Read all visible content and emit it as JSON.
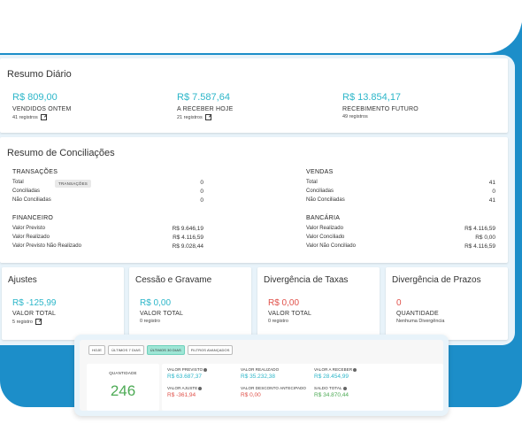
{
  "colors": {
    "accent_teal": "#2cb6c9",
    "negative_red": "#e0514a",
    "positive_green": "#4caa54",
    "background_blue": "#1c8ec9"
  },
  "resumo_diario": {
    "title": "Resumo Diário",
    "columns": [
      {
        "value": "R$ 809,00",
        "label": "VENDIDOS ONTEM",
        "sub": "41 registros"
      },
      {
        "value": "R$ 7.587,64",
        "label": "A RECEBER HOJE",
        "sub": "21 registros"
      },
      {
        "value": "R$ 13.854,17",
        "label": "RECEBIMENTO FUTURO",
        "sub": "49 registros"
      }
    ]
  },
  "resumo_conciliacoes": {
    "title": "Resumo de Conciliações",
    "tooltip": "TRANSAÇÕES",
    "transacoes": {
      "title": "TRANSAÇÕES",
      "rows": [
        [
          "Total",
          "0"
        ],
        [
          "Conciliadas",
          "0"
        ],
        [
          "Não Conciliadas",
          "0"
        ]
      ]
    },
    "vendas": {
      "title": "VENDAS",
      "rows": [
        [
          "Total",
          "41"
        ],
        [
          "Conciliadas",
          "0"
        ],
        [
          "Não Conciliadas",
          "41"
        ]
      ]
    },
    "financeiro": {
      "title": "FINANCEIRO",
      "rows": [
        [
          "Valor Previsto",
          "R$ 9.646,19"
        ],
        [
          "Valor Realizado",
          "R$ 4.116,59"
        ],
        [
          "Valor Previsto Não Realizado",
          "R$ 9.028,44"
        ]
      ]
    },
    "bancaria": {
      "title": "BANCÁRIA",
      "rows": [
        [
          "Valor Realizado",
          "R$ 4.116,59"
        ],
        [
          "Valor Conciliado",
          "R$ 0,00"
        ],
        [
          "Valor Não Conciliado",
          "R$ 4.116,59"
        ]
      ]
    }
  },
  "cards": [
    {
      "title": "Ajustes",
      "value": "R$ -125,99",
      "label": "VALOR TOTAL",
      "sub": "5 registro"
    },
    {
      "title": "Cessão e Gravame",
      "value": "R$ 0,00",
      "label": "VALOR TOTAL",
      "sub": "0 registro"
    },
    {
      "title": "Divergência de Taxas",
      "value": "R$ 0,00",
      "label": "VALOR TOTAL",
      "sub": "0 registro"
    },
    {
      "title": "Divergência de Prazos",
      "value": "0",
      "label": "QUANTIDADE",
      "sub": "Nenhuma Divergência"
    }
  ],
  "popup": {
    "chips": [
      "HOJE",
      "ÚLTIMOS 7 DIAS",
      "ÚLTIMOS 30 DIAS",
      "FILTROS AVANÇADOS"
    ],
    "active_chip": "ÚLTIMOS 30 DIAS",
    "quantidade_label": "QUANTIDADE",
    "quantidade_value": "246",
    "values": [
      {
        "label": "VALOR PREVISTO",
        "value": "R$ 63.687,37"
      },
      {
        "label": "VALOR REALIZADO",
        "value": "R$ 35.232,38"
      },
      {
        "label": "VALOR A RECEBER",
        "value": "R$ 28.454,99"
      },
      {
        "label": "VALOR AJUSTE",
        "value": "R$ -361,94"
      },
      {
        "label": "VALOR DESCONTO ANTECIPADO",
        "value": "R$ 0,00"
      },
      {
        "label": "SALDO TOTAL",
        "value": "R$ 34.870,44"
      }
    ]
  }
}
